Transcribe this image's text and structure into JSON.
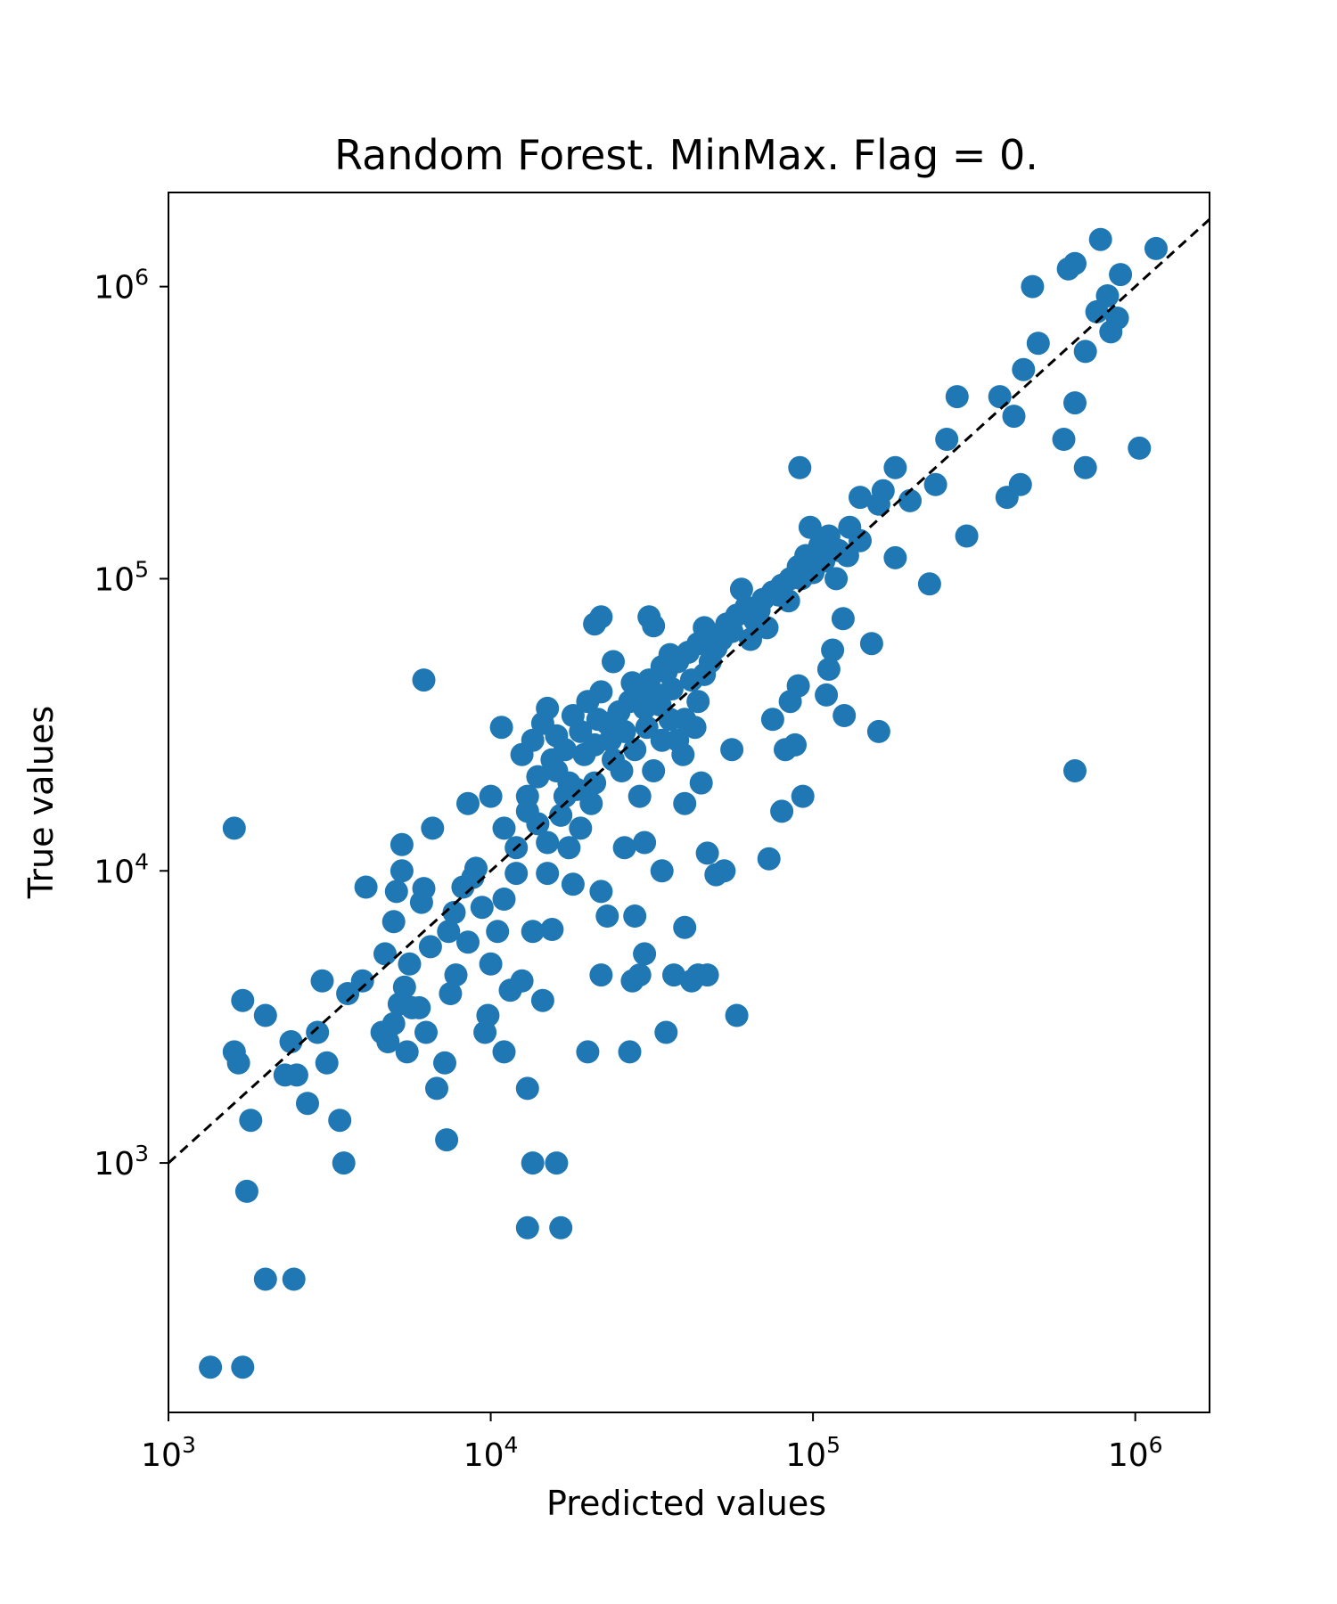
{
  "chart_data": {
    "type": "scatter",
    "title": "Random Forest. MinMax. Flag = 0.",
    "xlabel": "Predicted values",
    "ylabel": "True values",
    "x_scale": "log",
    "y_scale": "log",
    "xlim": [
      1000,
      1700000
    ],
    "ylim": [
      140,
      2100000
    ],
    "x_ticks": [
      {
        "value": 1000,
        "base": "10",
        "exp": "3"
      },
      {
        "value": 10000,
        "base": "10",
        "exp": "4"
      },
      {
        "value": 100000,
        "base": "10",
        "exp": "5"
      },
      {
        "value": 1000000,
        "base": "10",
        "exp": "6"
      }
    ],
    "y_ticks": [
      {
        "value": 1000,
        "base": "10",
        "exp": "3"
      },
      {
        "value": 10000,
        "base": "10",
        "exp": "4"
      },
      {
        "value": 100000,
        "base": "10",
        "exp": "5"
      },
      {
        "value": 1000000,
        "base": "10",
        "exp": "6"
      }
    ],
    "grid": false,
    "marker_color": "#1f77b4",
    "reference_line": {
      "style": "dashed",
      "color": "#000000",
      "equation": "y = x"
    },
    "points": [
      [
        1350,
        200
      ],
      [
        1700,
        200
      ],
      [
        2000,
        400
      ],
      [
        2450,
        400
      ],
      [
        1750,
        800
      ],
      [
        1800,
        1400
      ],
      [
        1600,
        2400
      ],
      [
        1650,
        2200
      ],
      [
        1700,
        3600
      ],
      [
        2000,
        3200
      ],
      [
        1600,
        14000
      ],
      [
        2300,
        2000
      ],
      [
        2500,
        2000
      ],
      [
        2400,
        2600
      ],
      [
        2700,
        1600
      ],
      [
        2900,
        2800
      ],
      [
        3100,
        2200
      ],
      [
        3000,
        4200
      ],
      [
        3400,
        1400
      ],
      [
        3500,
        1000
      ],
      [
        3600,
        3800
      ],
      [
        4000,
        4200
      ],
      [
        4100,
        8800
      ],
      [
        4600,
        2800
      ],
      [
        4700,
        5200
      ],
      [
        4800,
        2600
      ],
      [
        5000,
        3000
      ],
      [
        5200,
        3500
      ],
      [
        5500,
        2400
      ],
      [
        5400,
        4000
      ],
      [
        5600,
        4800
      ],
      [
        5000,
        6700
      ],
      [
        5100,
        8500
      ],
      [
        5300,
        10000
      ],
      [
        5300,
        12300
      ],
      [
        5700,
        3400
      ],
      [
        6000,
        3400
      ],
      [
        6300,
        2800
      ],
      [
        6100,
        7800
      ],
      [
        6200,
        8700
      ],
      [
        6500,
        5500
      ],
      [
        6200,
        45000
      ],
      [
        6600,
        14000
      ],
      [
        6800,
        1800
      ],
      [
        7200,
        2200
      ],
      [
        7300,
        1200
      ],
      [
        7500,
        3800
      ],
      [
        7800,
        4400
      ],
      [
        7400,
        6200
      ],
      [
        7700,
        7200
      ],
      [
        8200,
        8800
      ],
      [
        8500,
        5700
      ],
      [
        8800,
        9500
      ],
      [
        8500,
        17000
      ],
      [
        9000,
        10200
      ],
      [
        9400,
        7500
      ],
      [
        9600,
        2800
      ],
      [
        9800,
        3200
      ],
      [
        10000,
        4800
      ],
      [
        10500,
        6200
      ],
      [
        10000,
        18000
      ],
      [
        11000,
        2400
      ],
      [
        11500,
        3900
      ],
      [
        11000,
        8000
      ],
      [
        12000,
        9800
      ],
      [
        12000,
        12000
      ],
      [
        11000,
        14000
      ],
      [
        10800,
        31000
      ],
      [
        12500,
        4200
      ],
      [
        13000,
        1800
      ],
      [
        13500,
        1000
      ],
      [
        13000,
        600
      ],
      [
        13500,
        6200
      ],
      [
        13000,
        16000
      ],
      [
        14500,
        3600
      ],
      [
        15500,
        6300
      ],
      [
        16000,
        1000
      ],
      [
        16500,
        600
      ],
      [
        15000,
        9800
      ],
      [
        12500,
        25000
      ],
      [
        13500,
        28000
      ],
      [
        14500,
        32000
      ],
      [
        15000,
        36000
      ],
      [
        16000,
        22000
      ],
      [
        17000,
        18000
      ],
      [
        17500,
        12000
      ],
      [
        18000,
        9000
      ],
      [
        19000,
        14000
      ],
      [
        20000,
        2400
      ],
      [
        21000,
        20000
      ],
      [
        22000,
        4400
      ],
      [
        22000,
        8500
      ],
      [
        23000,
        7000
      ],
      [
        21000,
        70000
      ],
      [
        22000,
        74000
      ],
      [
        24000,
        52000
      ],
      [
        26000,
        12000
      ],
      [
        27000,
        2400
      ],
      [
        27500,
        4200
      ],
      [
        28000,
        7000
      ],
      [
        29000,
        4400
      ],
      [
        30000,
        5200
      ],
      [
        29000,
        18000
      ],
      [
        30000,
        12500
      ],
      [
        31000,
        74000
      ],
      [
        32000,
        69000
      ],
      [
        35000,
        2800
      ],
      [
        34000,
        10000
      ],
      [
        34000,
        28000
      ],
      [
        36000,
        33000
      ],
      [
        37000,
        4400
      ],
      [
        40000,
        6400
      ],
      [
        40000,
        17000
      ],
      [
        42000,
        4200
      ],
      [
        44000,
        4400
      ],
      [
        45000,
        20000
      ],
      [
        47000,
        4400
      ],
      [
        47000,
        11500
      ],
      [
        50000,
        9700
      ],
      [
        53000,
        10000
      ],
      [
        58000,
        3200
      ],
      [
        56000,
        26000
      ],
      [
        73000,
        11000
      ],
      [
        80000,
        16000
      ],
      [
        82000,
        26000
      ],
      [
        88000,
        27000
      ],
      [
        93000,
        18000
      ],
      [
        75000,
        33000
      ],
      [
        85000,
        38000
      ],
      [
        90000,
        43000
      ],
      [
        110000,
        40000
      ],
      [
        112000,
        49000
      ],
      [
        115000,
        57000
      ],
      [
        125000,
        34000
      ],
      [
        152000,
        60000
      ],
      [
        160000,
        30000
      ],
      [
        124000,
        73000
      ],
      [
        91000,
        240000
      ],
      [
        140000,
        190000
      ],
      [
        160000,
        180000
      ],
      [
        165000,
        200000
      ],
      [
        180000,
        240000
      ],
      [
        200000,
        185000
      ],
      [
        180000,
        118000
      ],
      [
        230000,
        96000
      ],
      [
        240000,
        210000
      ],
      [
        280000,
        420000
      ],
      [
        260000,
        300000
      ],
      [
        300000,
        140000
      ],
      [
        380000,
        420000
      ],
      [
        400000,
        190000
      ],
      [
        440000,
        210000
      ],
      [
        420000,
        360000
      ],
      [
        480000,
        1000000
      ],
      [
        500000,
        640000
      ],
      [
        450000,
        520000
      ],
      [
        600000,
        300000
      ],
      [
        620000,
        1150000
      ],
      [
        650000,
        1200000
      ],
      [
        650000,
        400000
      ],
      [
        650000,
        22000
      ],
      [
        700000,
        240000
      ],
      [
        700000,
        600000
      ],
      [
        780000,
        1450000
      ],
      [
        820000,
        930000
      ],
      [
        900000,
        1100000
      ],
      [
        1030000,
        280000
      ],
      [
        1160000,
        1350000
      ],
      [
        880000,
        780000
      ],
      [
        840000,
        700000
      ],
      [
        760000,
        820000
      ],
      [
        14000,
        21000
      ],
      [
        15500,
        24000
      ],
      [
        17000,
        26000
      ],
      [
        19000,
        30000
      ],
      [
        21000,
        27000
      ],
      [
        23000,
        32000
      ],
      [
        25000,
        35000
      ],
      [
        27000,
        38000
      ],
      [
        29000,
        42000
      ],
      [
        31000,
        45000
      ],
      [
        33000,
        40000
      ],
      [
        35000,
        48000
      ],
      [
        38000,
        52000
      ],
      [
        41000,
        56000
      ],
      [
        44000,
        60000
      ],
      [
        47000,
        64000
      ],
      [
        50000,
        58000
      ],
      [
        54000,
        70000
      ],
      [
        58000,
        75000
      ],
      [
        62000,
        80000
      ],
      [
        66000,
        72000
      ],
      [
        70000,
        85000
      ],
      [
        75000,
        90000
      ],
      [
        80000,
        95000
      ],
      [
        85000,
        100000
      ],
      [
        90000,
        110000
      ],
      [
        95000,
        120000
      ],
      [
        100000,
        105000
      ],
      [
        105000,
        130000
      ],
      [
        112000,
        140000
      ],
      [
        120000,
        125000
      ],
      [
        130000,
        150000
      ],
      [
        140000,
        135000
      ],
      [
        18000,
        34000
      ],
      [
        20000,
        38000
      ],
      [
        22000,
        41000
      ],
      [
        24000,
        24000
      ],
      [
        26000,
        30000
      ],
      [
        28000,
        26000
      ],
      [
        30000,
        36000
      ],
      [
        32000,
        22000
      ],
      [
        34000,
        50000
      ],
      [
        36000,
        55000
      ],
      [
        38000,
        28000
      ],
      [
        40000,
        33000
      ],
      [
        42000,
        45000
      ],
      [
        44000,
        38000
      ],
      [
        46000,
        68000
      ],
      [
        48000,
        52000
      ],
      [
        52000,
        62000
      ],
      [
        56000,
        66000
      ],
      [
        60000,
        92000
      ],
      [
        64000,
        62000
      ],
      [
        68000,
        78000
      ],
      [
        72000,
        68000
      ],
      [
        78000,
        88000
      ],
      [
        84000,
        84000
      ],
      [
        92000,
        100000
      ],
      [
        98000,
        150000
      ],
      [
        108000,
        115000
      ],
      [
        118000,
        100000
      ],
      [
        128000,
        120000
      ],
      [
        16000,
        29000
      ],
      [
        17500,
        20000
      ],
      [
        19500,
        25000
      ],
      [
        21500,
        33000
      ],
      [
        23500,
        28000
      ],
      [
        25500,
        22000
      ],
      [
        27500,
        44000
      ],
      [
        30500,
        31000
      ],
      [
        33500,
        37000
      ],
      [
        36500,
        42000
      ],
      [
        39500,
        25000
      ],
      [
        43000,
        31000
      ],
      [
        46000,
        47000
      ],
      [
        13000,
        18000
      ],
      [
        14000,
        14500
      ],
      [
        15000,
        12500
      ],
      [
        16500,
        15500
      ],
      [
        18500,
        19000
      ],
      [
        20500,
        17000
      ]
    ]
  }
}
